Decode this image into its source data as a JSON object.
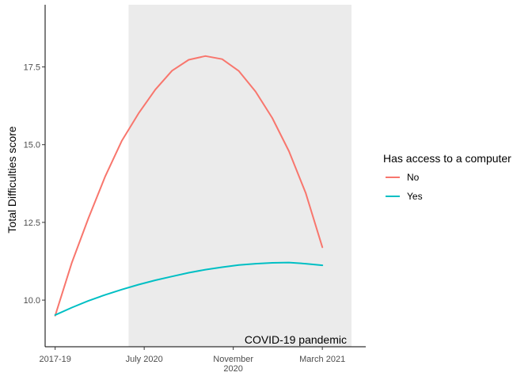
{
  "chart_data": {
    "type": "line",
    "title": "",
    "xlabel": "",
    "ylabel": "Total Difficulties score",
    "x_ticks": [
      "2017-19",
      "July 2020",
      "November\n2020",
      "March 2021"
    ],
    "y_ticks": [
      10.0,
      12.5,
      15.0,
      17.5
    ],
    "y_tick_labels": [
      "10.0",
      "12.5",
      "15.0",
      "17.5"
    ],
    "ylim": [
      8.5,
      19.5
    ],
    "xlim": [
      -0.15,
      4.65
    ],
    "grid": false,
    "legend_title": "Has access to a computer",
    "legend_position": "right",
    "shaded_region": {
      "x_start": 1.1,
      "x_end": 4.65,
      "label": "COVID-19 pandemic",
      "color": "#ebebeb"
    },
    "series": [
      {
        "name": "No",
        "color": "#F8766D",
        "x": [
          0,
          0.25,
          0.5,
          0.75,
          1.0,
          1.25,
          1.5,
          1.75,
          2.0,
          2.25,
          2.5,
          2.75,
          3.0,
          3.25,
          3.5,
          3.75,
          4.0
        ],
        "values": [
          9.5,
          11.21,
          12.64,
          13.98,
          15.13,
          16.01,
          16.77,
          17.38,
          17.73,
          17.85,
          17.75,
          17.37,
          16.71,
          15.86,
          14.79,
          13.45,
          11.7
        ]
      },
      {
        "name": "Yes",
        "color": "#00BFC4",
        "x": [
          0,
          0.25,
          0.5,
          0.75,
          1.0,
          1.25,
          1.5,
          1.75,
          2.0,
          2.25,
          2.5,
          2.75,
          3.0,
          3.25,
          3.5,
          3.75,
          4.0
        ],
        "values": [
          9.52,
          9.76,
          9.98,
          10.17,
          10.34,
          10.5,
          10.64,
          10.76,
          10.88,
          10.98,
          11.06,
          11.13,
          11.17,
          11.2,
          11.21,
          11.17,
          11.12
        ]
      }
    ]
  }
}
